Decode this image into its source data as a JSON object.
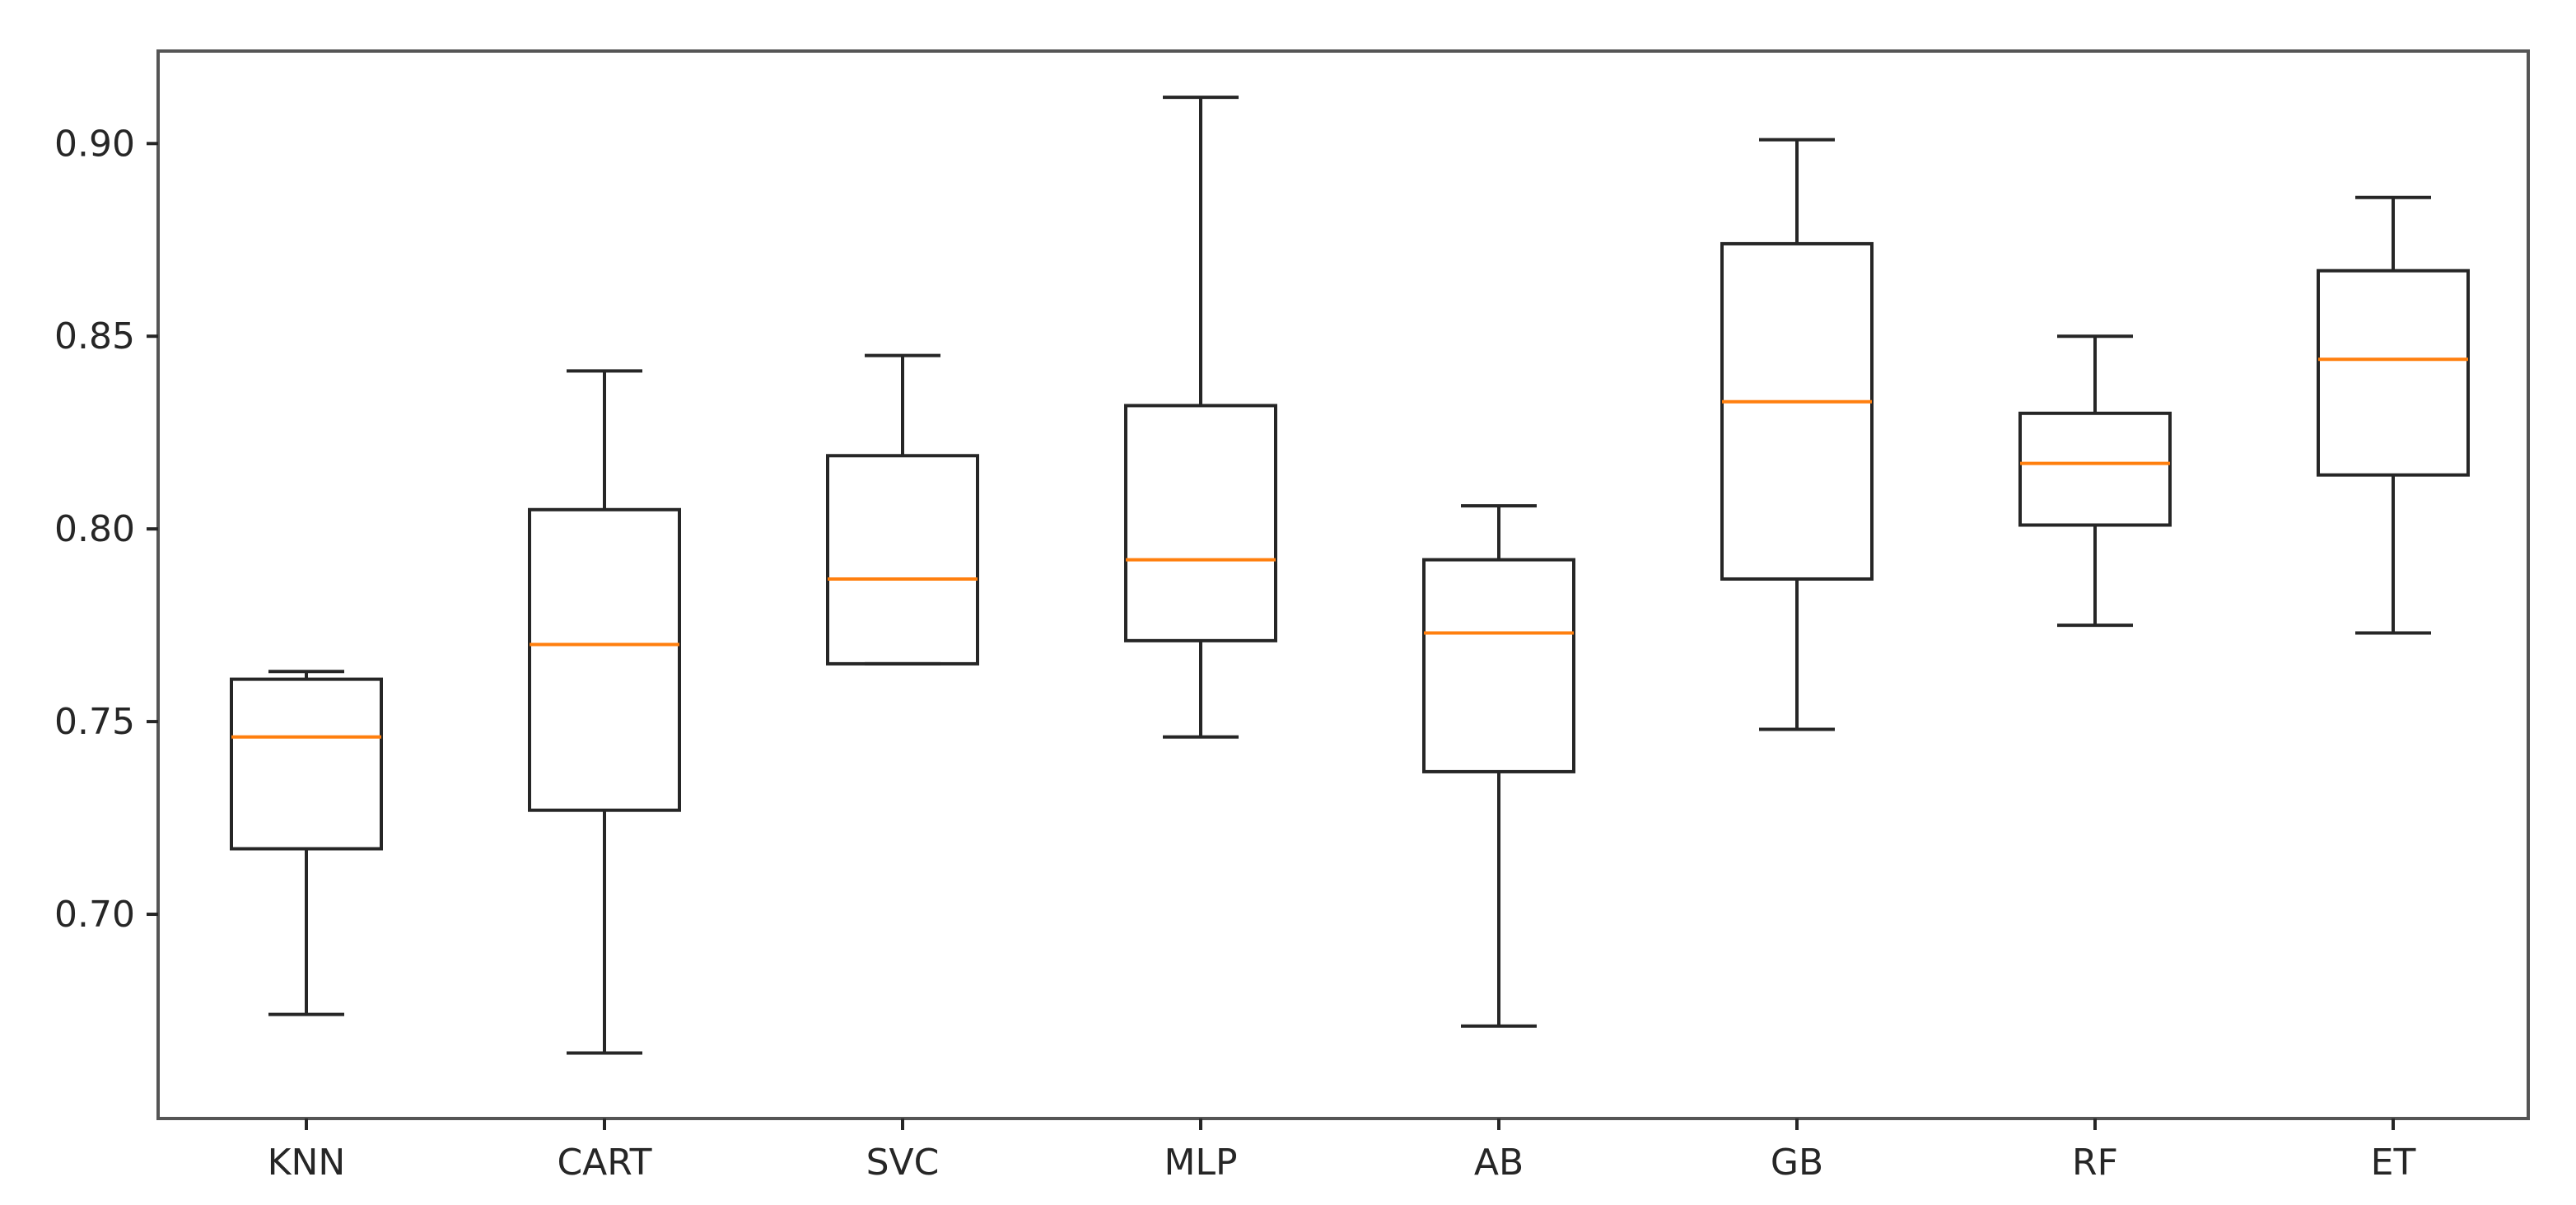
{
  "chart_data": {
    "type": "box",
    "title": "",
    "xlabel": "",
    "ylabel": "",
    "ylim": [
      0.647,
      0.924
    ],
    "yticks": [
      "0.70",
      "0.75",
      "0.80",
      "0.85",
      "0.90"
    ],
    "categories": [
      "KNN",
      "CART",
      "SVC",
      "MLP",
      "AB",
      "GB",
      "RF",
      "ET"
    ],
    "boxes": [
      {
        "name": "KNN",
        "whisker_low": 0.674,
        "q1": 0.717,
        "median": 0.746,
        "q3": 0.761,
        "whisker_high": 0.763
      },
      {
        "name": "CART",
        "whisker_low": 0.664,
        "q1": 0.727,
        "median": 0.77,
        "q3": 0.805,
        "whisker_high": 0.841
      },
      {
        "name": "SVC",
        "whisker_low": 0.765,
        "q1": 0.765,
        "median": 0.787,
        "q3": 0.819,
        "whisker_high": 0.845
      },
      {
        "name": "MLP",
        "whisker_low": 0.746,
        "q1": 0.771,
        "median": 0.792,
        "q3": 0.832,
        "whisker_high": 0.912
      },
      {
        "name": "AB",
        "whisker_low": 0.671,
        "q1": 0.737,
        "median": 0.773,
        "q3": 0.792,
        "whisker_high": 0.806
      },
      {
        "name": "GB",
        "whisker_low": 0.748,
        "q1": 0.787,
        "median": 0.833,
        "q3": 0.874,
        "whisker_high": 0.901
      },
      {
        "name": "RF",
        "whisker_low": 0.775,
        "q1": 0.801,
        "median": 0.817,
        "q3": 0.83,
        "whisker_high": 0.85
      },
      {
        "name": "ET",
        "whisker_low": 0.773,
        "q1": 0.814,
        "median": 0.844,
        "q3": 0.867,
        "whisker_high": 0.886
      }
    ],
    "grid": false,
    "colors": {
      "box": "#262626",
      "median": "#ff7f0e",
      "frame": "#555555",
      "text": "#262626"
    }
  }
}
